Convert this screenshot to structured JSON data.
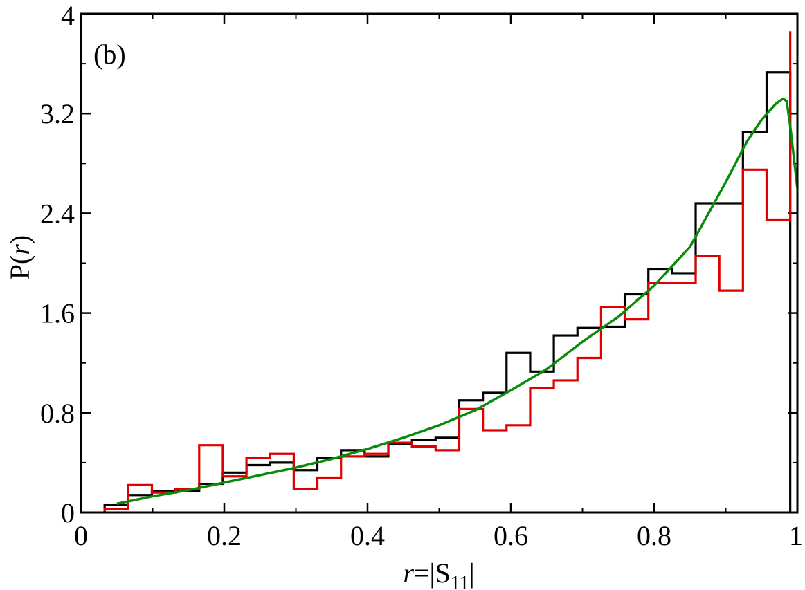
{
  "chart_data": {
    "type": "line",
    "panel_label": "(b)",
    "xlabel": "r=|S11|",
    "ylabel": "P(r)",
    "xlim": [
      0,
      1
    ],
    "ylim": [
      0,
      4
    ],
    "x_ticks": [
      "0",
      "0.2",
      "0.4",
      "0.6",
      "0.8",
      "1"
    ],
    "y_ticks": [
      "0",
      "0.8",
      "1.6",
      "2.4",
      "3.2",
      "4"
    ],
    "x_tick_values": [
      0,
      0.2,
      0.4,
      0.6,
      0.8,
      1
    ],
    "y_tick_values": [
      0,
      0.8,
      1.6,
      2.4,
      3.2,
      4
    ],
    "series": [
      {
        "style": "step",
        "color": "#000000",
        "bin_edges": [
          0.033,
          0.066,
          0.099,
          0.132,
          0.165,
          0.198,
          0.231,
          0.264,
          0.297,
          0.33,
          0.363,
          0.396,
          0.429,
          0.462,
          0.495,
          0.528,
          0.561,
          0.594,
          0.627,
          0.66,
          0.693,
          0.726,
          0.759,
          0.792,
          0.825,
          0.858,
          0.891,
          0.924,
          0.957,
          0.99
        ],
        "values": [
          0.06,
          0.14,
          0.17,
          0.17,
          0.23,
          0.32,
          0.38,
          0.4,
          0.34,
          0.44,
          0.5,
          0.45,
          0.55,
          0.58,
          0.6,
          0.9,
          0.96,
          1.28,
          1.13,
          1.42,
          1.48,
          1.49,
          1.75,
          1.95,
          1.92,
          2.48,
          2.48,
          3.05,
          3.53
        ]
      },
      {
        "style": "step",
        "color": "#e00000",
        "bin_edges": [
          0.033,
          0.066,
          0.099,
          0.132,
          0.165,
          0.198,
          0.231,
          0.264,
          0.297,
          0.33,
          0.363,
          0.396,
          0.429,
          0.462,
          0.495,
          0.528,
          0.561,
          0.594,
          0.627,
          0.66,
          0.693,
          0.726,
          0.759,
          0.792,
          0.825,
          0.858,
          0.891,
          0.924,
          0.957,
          0.99
        ],
        "values": [
          0.03,
          0.22,
          0.16,
          0.19,
          0.54,
          0.29,
          0.44,
          0.47,
          0.19,
          0.28,
          0.45,
          0.47,
          0.56,
          0.53,
          0.5,
          0.83,
          0.66,
          0.7,
          1.0,
          1.06,
          1.24,
          1.65,
          1.55,
          1.84,
          1.84,
          2.06,
          1.78,
          2.75,
          2.35,
          3.86
        ]
      },
      {
        "style": "line",
        "color": "#0a8a0a",
        "x": [
          0.05,
          0.1,
          0.15,
          0.2,
          0.25,
          0.3,
          0.35,
          0.4,
          0.45,
          0.5,
          0.55,
          0.6,
          0.65,
          0.7,
          0.75,
          0.8,
          0.85,
          0.9,
          0.93,
          0.95,
          0.97,
          0.98,
          0.985,
          0.99,
          0.995,
          1.0
        ],
        "y": [
          0.07,
          0.13,
          0.18,
          0.24,
          0.3,
          0.36,
          0.43,
          0.51,
          0.6,
          0.7,
          0.82,
          0.98,
          1.15,
          1.37,
          1.57,
          1.82,
          2.13,
          2.65,
          2.98,
          3.15,
          3.28,
          3.32,
          3.3,
          3.1,
          2.85,
          2.6
        ]
      }
    ]
  }
}
